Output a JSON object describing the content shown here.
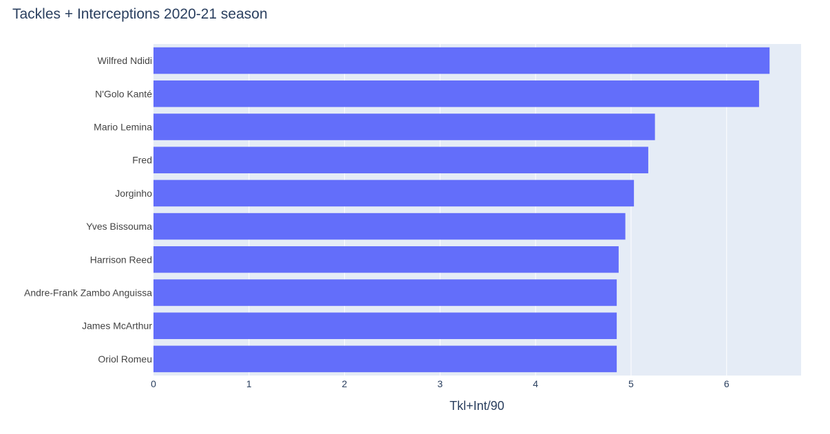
{
  "chart_data": {
    "type": "bar",
    "orientation": "horizontal",
    "title": "Tackles + Interceptions 2020-21 season",
    "xlabel": "Tkl+Int/90",
    "ylabel": "",
    "categories": [
      "Wilfred Ndidi",
      "N'Golo Kanté",
      "Mario Lemina",
      "Fred",
      "Jorginho",
      "Yves Bissouma",
      "Harrison Reed",
      "Andre-Frank Zambo Anguissa",
      "James McArthur",
      "Oriol Romeu"
    ],
    "values": [
      6.45,
      6.34,
      5.25,
      5.18,
      5.03,
      4.94,
      4.87,
      4.85,
      4.85,
      4.85
    ],
    "xlim": [
      0,
      6.78
    ],
    "xticks": [
      "0",
      "1",
      "2",
      "3",
      "4",
      "5",
      "6"
    ],
    "grid": true,
    "legend": "none"
  },
  "colors": {
    "bar": "#636efa",
    "plot_background": "#e5ecf6",
    "gridline": "#ffffff",
    "text": "#2a3f5f",
    "label_text": "#444444"
  }
}
